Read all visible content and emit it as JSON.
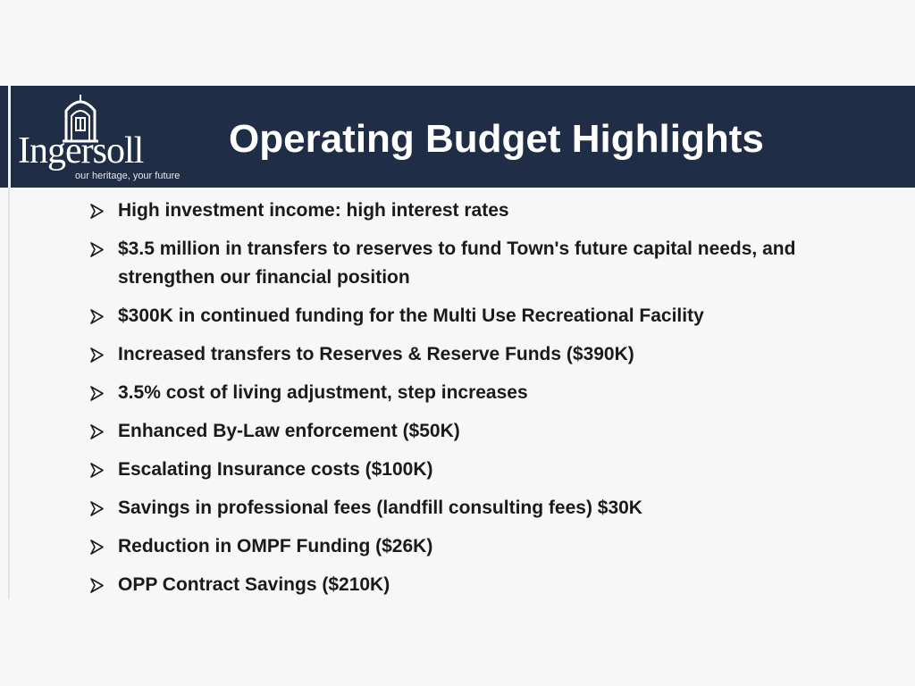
{
  "header": {
    "logo_text": "Ingersoll",
    "tagline": "our heritage, your future",
    "title": "Operating Budget Highlights"
  },
  "colors": {
    "banner": "#1f2d46",
    "title": "#ffffff",
    "body_text": "#1a1a1a",
    "background": "#f7f7f7"
  },
  "bullet_icon": "arrow-bullet-icon",
  "bullets": [
    "High investment income: high interest rates",
    "$3.5 million in transfers to reserves to fund Town's future capital needs, and strengthen our financial position",
    "$300K in continued funding for the Multi Use Recreational Facility",
    "Increased transfers to Reserves & Reserve Funds ($390K)",
    "3.5% cost of living adjustment, step increases",
    "Enhanced By-Law enforcement ($50K)",
    "Escalating Insurance costs ($100K)",
    "Savings in professional fees (landfill consulting fees) $30K",
    "Reduction in OMPF Funding ($26K)",
    "OPP Contract Savings ($210K)"
  ]
}
